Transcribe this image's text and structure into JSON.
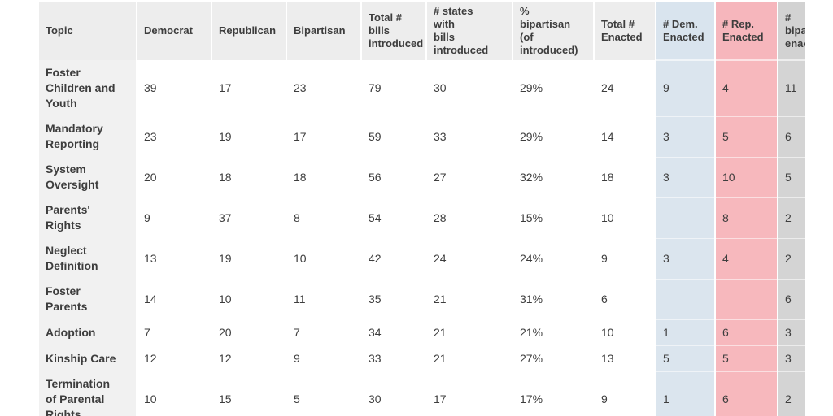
{
  "colors": {
    "page_background": "#ffffff",
    "header_bg": "#ededed",
    "topic_column_bg": "#f1f1f1",
    "dem_enacted_column_bg": "#d9e4ee",
    "rep_enacted_column_bg": "#f6b6bc",
    "bipartisan_enacted_column_bg": "#d3d3d3",
    "text": "#3d3d3d"
  },
  "chart_data": {
    "type": "table",
    "columns": [
      {
        "key": "topic",
        "label": "Topic",
        "variant": "topic"
      },
      {
        "key": "democrat",
        "label": "Democrat",
        "variant": "plain"
      },
      {
        "key": "republican",
        "label": "Republican",
        "variant": "plain"
      },
      {
        "key": "bipartisan",
        "label": "Bipartisan",
        "variant": "plain"
      },
      {
        "key": "total_bills",
        "label": "Total #\nbills\nintroduced",
        "variant": "plain"
      },
      {
        "key": "states",
        "label": "# states\nwith\nbills\nintroduced",
        "variant": "plain"
      },
      {
        "key": "pct",
        "label": "%\nbipartisan\n(of\nintroduced)",
        "variant": "plain"
      },
      {
        "key": "total_enacted",
        "label": "Total #\nEnacted",
        "variant": "plain"
      },
      {
        "key": "dem_enacted",
        "label": "# Dem.\nEnacted",
        "variant": "blue"
      },
      {
        "key": "rep_enacted",
        "label": "# Rep.\nEnacted",
        "variant": "pink"
      },
      {
        "key": "bip_enacted",
        "label": "#\nbipartisan\nenacted",
        "variant": "gray"
      }
    ],
    "rows": [
      [
        "Foster Children and Youth",
        39,
        17,
        23,
        79,
        30,
        "29%",
        24,
        9,
        4,
        11
      ],
      [
        "Mandatory Reporting",
        23,
        19,
        17,
        59,
        33,
        "29%",
        14,
        3,
        5,
        6
      ],
      [
        "System Oversight",
        20,
        18,
        18,
        56,
        27,
        "32%",
        18,
        3,
        10,
        5
      ],
      [
        "Parents' Rights",
        9,
        37,
        8,
        54,
        28,
        "15%",
        10,
        "",
        8,
        2
      ],
      [
        "Neglect Definition",
        13,
        19,
        10,
        42,
        24,
        "24%",
        9,
        3,
        4,
        2
      ],
      [
        "Foster Parents",
        14,
        10,
        11,
        35,
        21,
        "31%",
        6,
        "",
        "",
        6
      ],
      [
        "Adoption",
        7,
        20,
        7,
        34,
        21,
        "21%",
        10,
        1,
        6,
        3
      ],
      [
        "Kinship Care",
        12,
        12,
        9,
        33,
        21,
        "27%",
        13,
        5,
        5,
        3
      ],
      [
        "Termination of Parental Rights",
        10,
        15,
        5,
        30,
        17,
        "17%",
        9,
        1,
        6,
        2
      ]
    ]
  }
}
